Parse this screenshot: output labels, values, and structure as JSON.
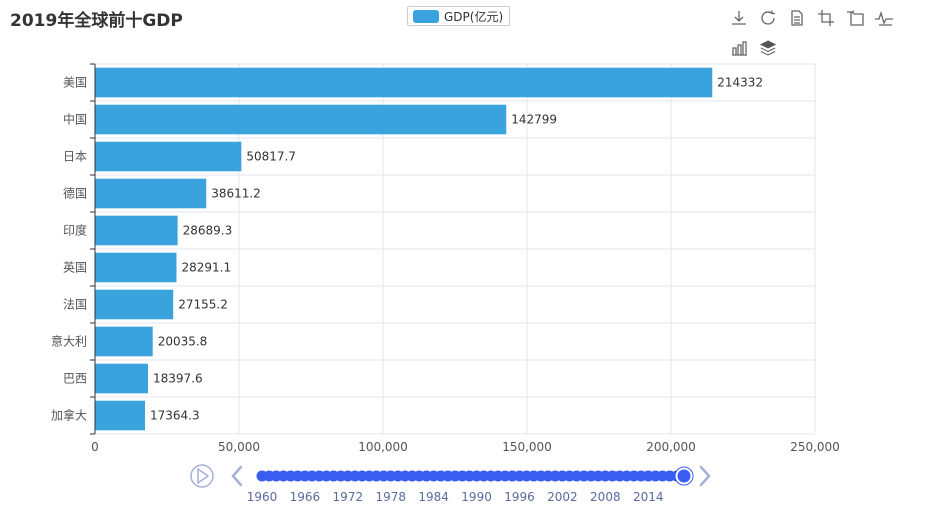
{
  "chart_data": {
    "type": "bar",
    "orientation": "horizontal",
    "title": "2019年全球前十GDP",
    "legend": [
      "GDP(亿元)"
    ],
    "categories": [
      "美国",
      "中国",
      "日本",
      "德国",
      "印度",
      "英国",
      "法国",
      "意大利",
      "巴西",
      "加拿大"
    ],
    "series": [
      {
        "name": "GDP(亿元)",
        "values": [
          214332,
          142799,
          50817.7,
          38611.2,
          28689.3,
          28291.1,
          27155.2,
          20035.8,
          18397.6,
          17364.3
        ]
      }
    ],
    "value_labels": [
      "214332",
      "142799",
      "50817.7",
      "38611.2",
      "28689.3",
      "28291.1",
      "27155.2",
      "20035.8",
      "18397.6",
      "17364.3"
    ],
    "xlim": [
      0,
      250000
    ],
    "xticks": [
      0,
      50000,
      100000,
      150000,
      200000,
      250000
    ],
    "xtick_labels": [
      "0",
      "50,000",
      "100,000",
      "150,000",
      "200,000",
      "250,000"
    ],
    "grid": true,
    "colors": {
      "bar": "#3aa2dc",
      "axis": "#333333",
      "grid": "#e0e6f1",
      "timeline": "#3b5cf0",
      "timeline_ctrl": "#a4b1d7"
    }
  },
  "timeline": {
    "labels": [
      "1960",
      "1966",
      "1972",
      "1978",
      "1984",
      "1990",
      "1996",
      "2002",
      "2008",
      "2014"
    ],
    "start_year": 1960,
    "end_year": 2019,
    "current_year": 2019
  },
  "toolbox": {
    "icons": [
      "download-icon",
      "refresh-icon",
      "data-view-icon",
      "zoom-icon",
      "zoom-reset-icon",
      "line-chart-icon",
      "bar-chart-icon",
      "stack-icon"
    ]
  }
}
